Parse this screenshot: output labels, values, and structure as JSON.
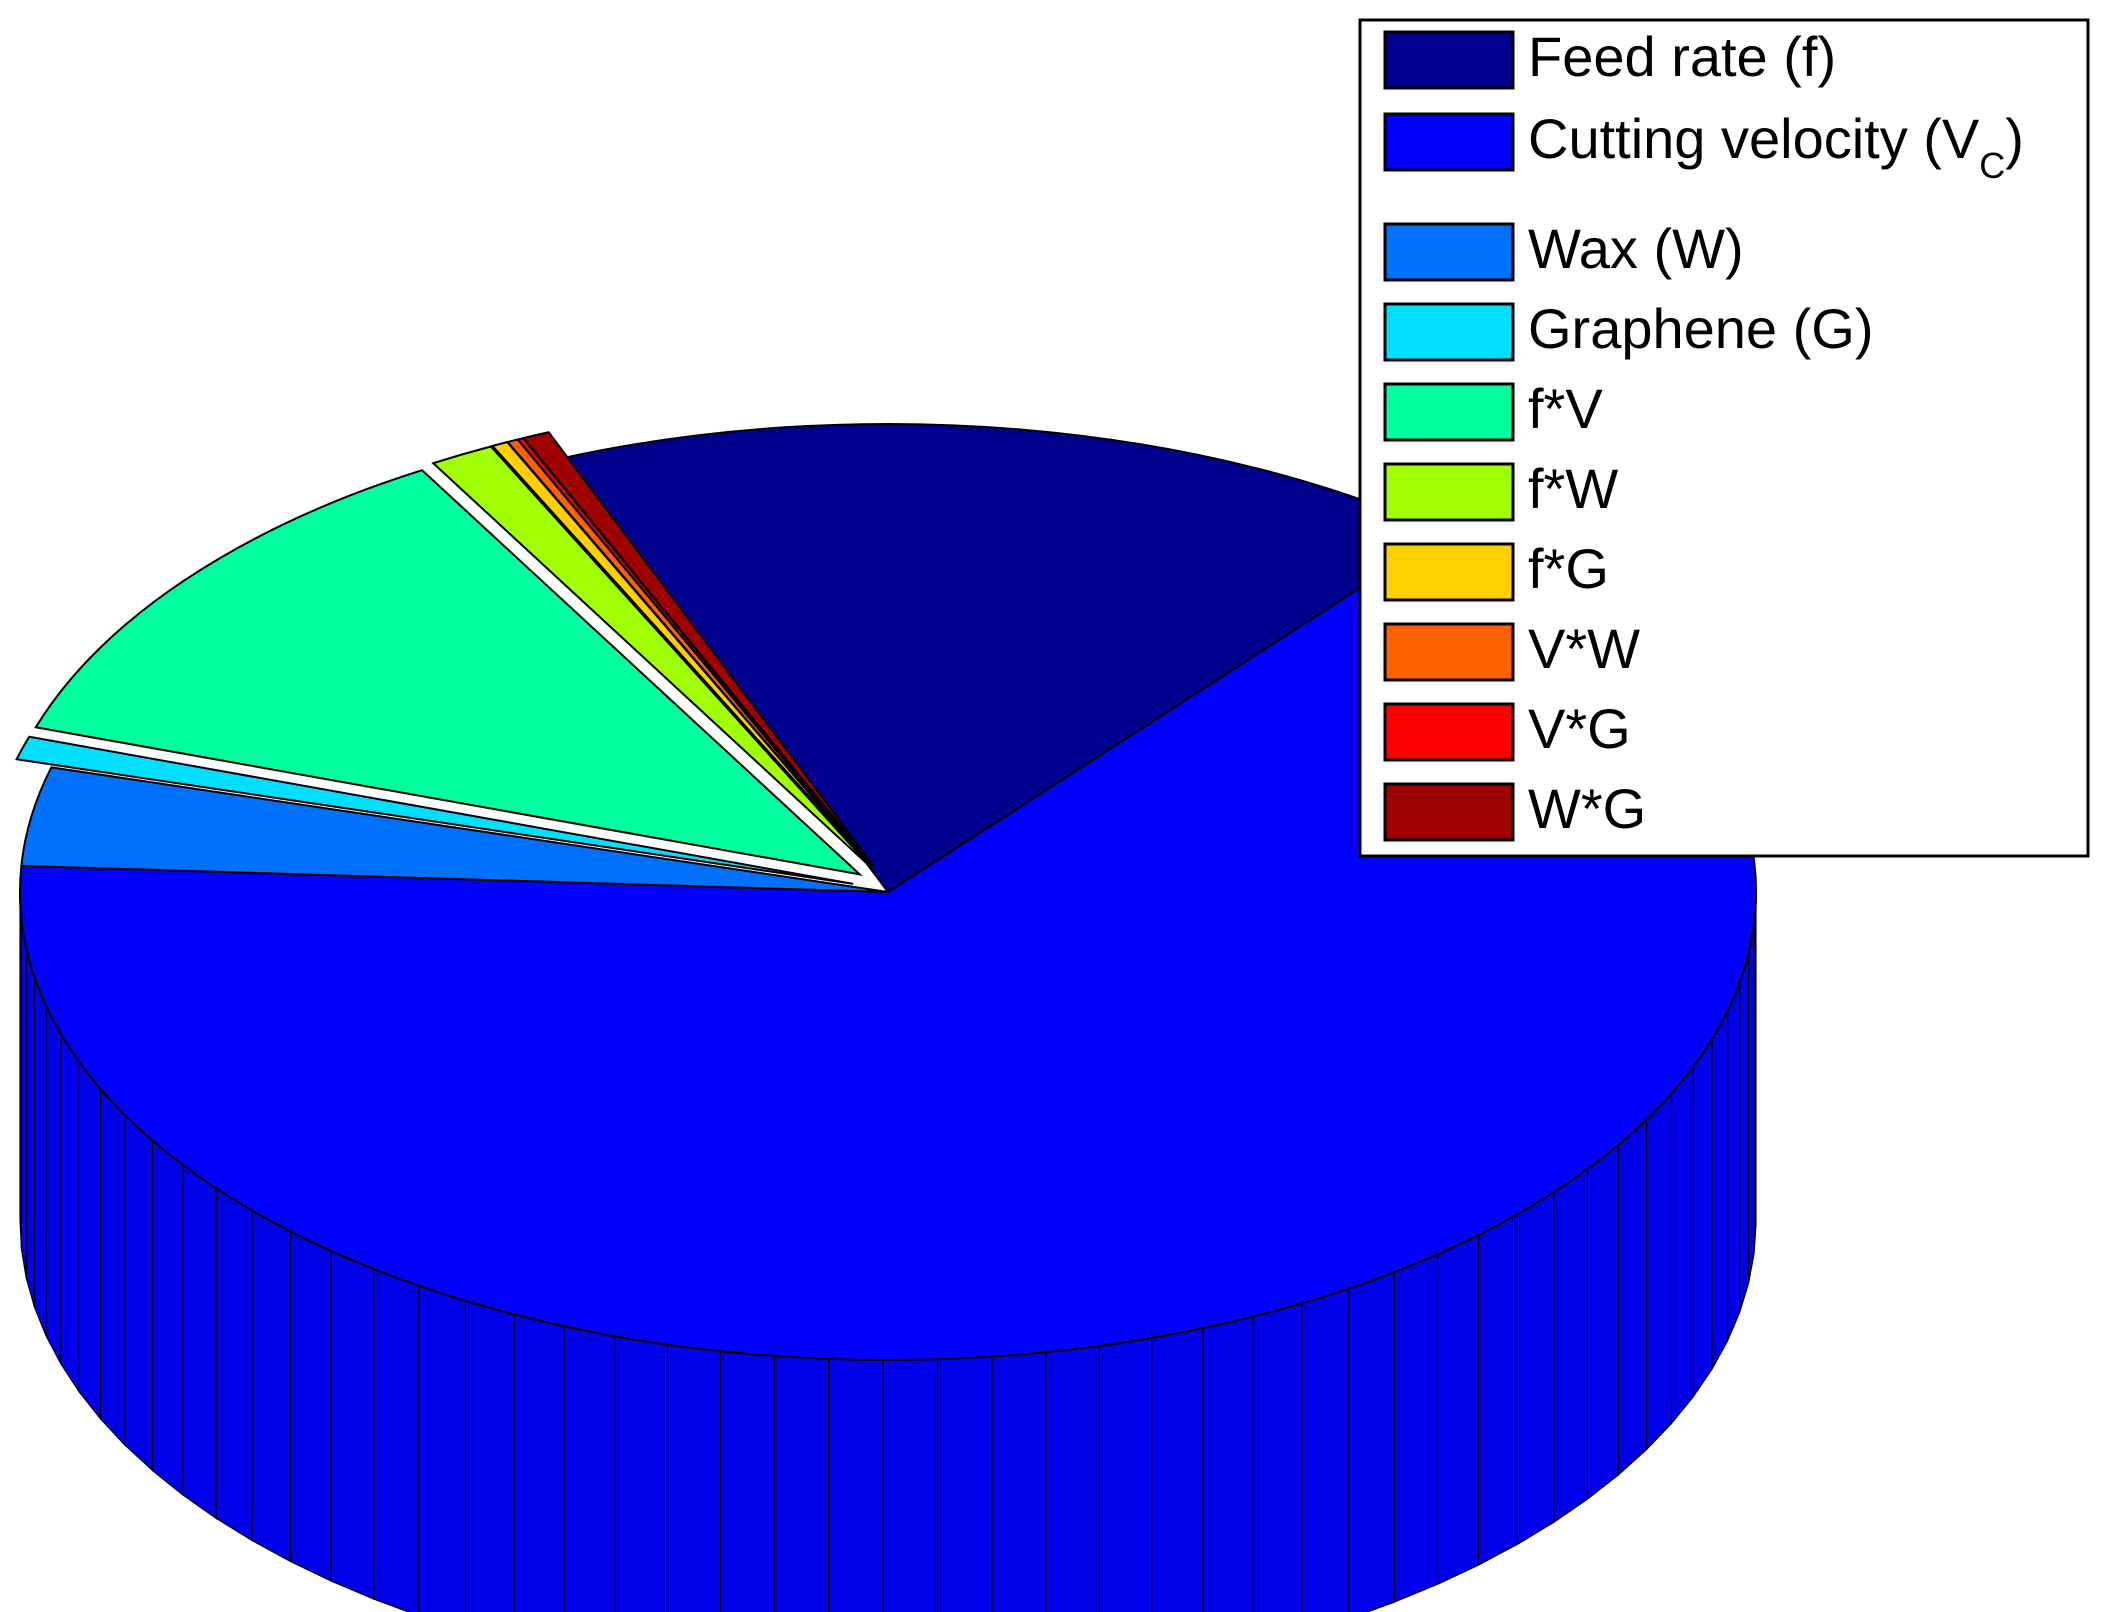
{
  "chart_data": {
    "type": "pie",
    "style": "3d-exploded",
    "legend_position": "top-right",
    "series": [
      {
        "name": "Feed rate (f)",
        "value": 17.2,
        "color": "#00008F",
        "exploded": false
      },
      {
        "name": "Cutting velocity (V",
        "name_subscript": "C",
        "name_suffix": ")",
        "value": 64.8,
        "color": "#0000FF",
        "exploded": false
      },
      {
        "name": "Wax (W)",
        "value": 3.4,
        "color": "#0070FF",
        "exploded": false
      },
      {
        "name": "Graphene (G)",
        "value": 0.8,
        "color": "#00DFFF",
        "exploded": true
      },
      {
        "name": "f*V",
        "value": 11.5,
        "color": "#00FFA0",
        "exploded": true
      },
      {
        "name": "f*W",
        "value": 1.2,
        "color": "#A0FF00",
        "exploded": true
      },
      {
        "name": "f*G",
        "value": 0.3,
        "color": "#FFD000",
        "exploded": true
      },
      {
        "name": "V*W",
        "value": 0.2,
        "color": "#FF6000",
        "exploded": true
      },
      {
        "name": "V*G",
        "value": 0.1,
        "color": "#FF0000",
        "exploded": true
      },
      {
        "name": "W*G",
        "value": 0.5,
        "color": "#9F0000",
        "exploded": true
      }
    ]
  }
}
